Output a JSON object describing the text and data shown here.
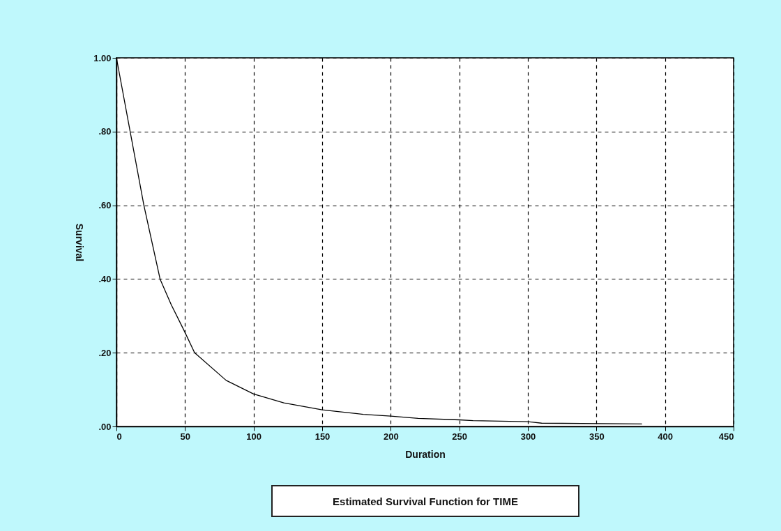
{
  "chart_data": {
    "type": "line",
    "title": "Estimated Survival Function for TIME",
    "xlabel": "Duration",
    "ylabel": "Survival",
    "x": [
      0,
      10,
      20,
      31.8,
      40,
      50,
      57,
      80,
      100,
      122,
      150,
      180,
      200,
      220,
      250,
      260,
      300,
      310,
      383
    ],
    "series": [
      {
        "color": "#000000",
        "values": [
          1.0,
          0.8,
          0.6,
          0.4,
          0.33,
          0.255,
          0.2,
          0.125,
          0.088,
          0.064,
          0.045,
          0.033,
          0.028,
          0.022,
          0.018,
          0.016,
          0.013,
          0.009,
          0.007
        ]
      }
    ],
    "xlim": [
      0,
      450
    ],
    "xticks": [
      0,
      50,
      100,
      150,
      200,
      250,
      300,
      350,
      400,
      450
    ],
    "ylim": [
      0,
      1
    ],
    "yticks": [
      {
        "value": 0,
        "label": ".00"
      },
      {
        "value": 0.2,
        "label": ".20"
      },
      {
        "value": 0.4,
        "label": ".40"
      },
      {
        "value": 0.6,
        "label": ".60"
      },
      {
        "value": 0.8,
        "label": ".80"
      },
      {
        "value": 1,
        "label": "1.00"
      }
    ],
    "grid": true,
    "marker": "none",
    "line_style": "solid"
  }
}
